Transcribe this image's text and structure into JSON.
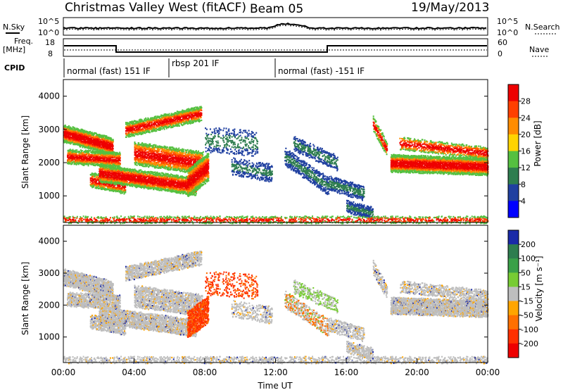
{
  "header": {
    "station": "Christmas Valley West (fitACF)",
    "beam": "Beam 05",
    "date": "19/May/2013"
  },
  "noise_panel": {
    "left_label": "N.Sky",
    "right_label": "N.Search",
    "left_ticks": [
      "10^5",
      "10^0"
    ],
    "right_ticks": [
      "10^5",
      "10^0"
    ]
  },
  "freq_panel": {
    "left_label_1": "Freq.",
    "left_label_2": "[MHz]",
    "left_ticks": [
      "18",
      "8"
    ],
    "right_label": "Nave",
    "right_ticks": [
      "60",
      "0"
    ]
  },
  "cpid": {
    "label": "CPID",
    "segments": [
      {
        "text": "normal (fast) 151 IF"
      },
      {
        "text": "rbsp 201 IF"
      },
      {
        "text": "normal (fast) -151 IF"
      }
    ]
  },
  "x_axis": {
    "title": "Time UT",
    "ticks": [
      "00:00",
      "04:00",
      "08:00",
      "12:00",
      "16:00",
      "20:00",
      "00:00"
    ]
  },
  "chart_data": [
    {
      "type": "heatmap",
      "panel": "power",
      "ylabel": "Slant Range [km]",
      "yticks": [
        "1000",
        "2000",
        "3000",
        "4000"
      ],
      "ylim": [
        200,
        4500
      ],
      "xlim_hours": [
        0,
        24
      ],
      "colorbar_label": "Power [dB]",
      "colorbar_ticks": [
        "4",
        "8",
        "12",
        "16",
        "20",
        "24",
        "28"
      ],
      "colors": [
        "#0000ff",
        "#2040a0",
        "#2e7d4f",
        "#55c040",
        "#ffd400",
        "#ff8c00",
        "#ff4000",
        "#ee0000"
      ]
    },
    {
      "type": "heatmap",
      "panel": "velocity",
      "ylabel": "Slant Range [km]",
      "yticks": [
        "1000",
        "2000",
        "3000",
        "4000"
      ],
      "ylim": [
        200,
        4500
      ],
      "xlim_hours": [
        0,
        24
      ],
      "colorbar_label": "Velocity [m s⁻¹]",
      "colorbar_ticks": [
        "200",
        "100",
        "50",
        "15",
        "-15",
        "-50",
        "-100",
        "-200"
      ],
      "colors": [
        "#1a2aa8",
        "#2e7d4f",
        "#3aa048",
        "#77cc33",
        "#bebebe",
        "#ffa500",
        "#ff7000",
        "#ff3000",
        "#ee0000"
      ]
    }
  ]
}
